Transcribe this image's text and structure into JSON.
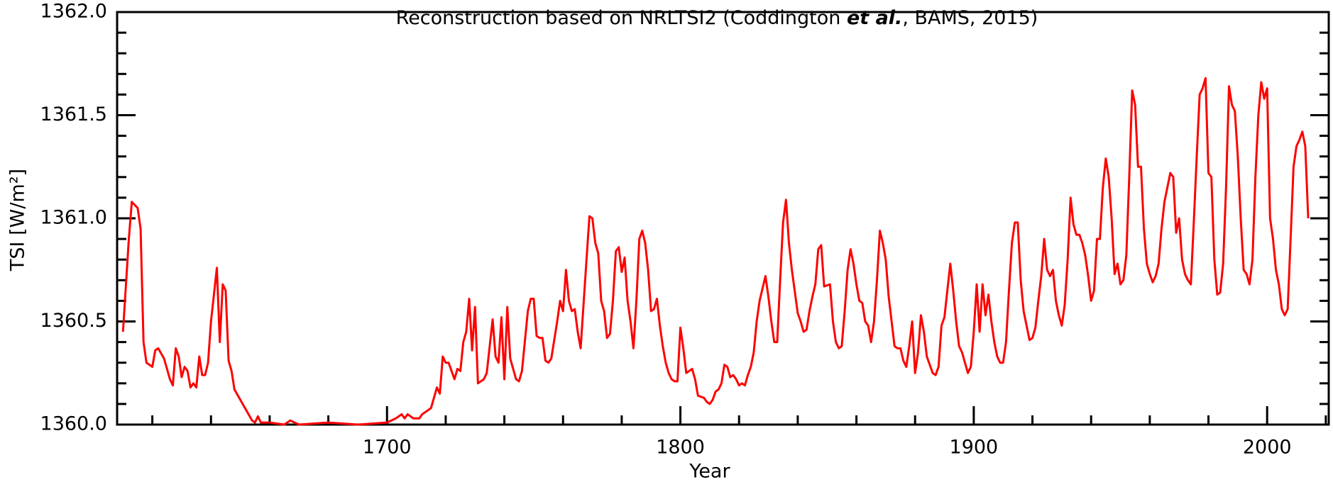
{
  "chart_data": {
    "type": "line",
    "title_parts": [
      "Reconstruction based on NRLTSI2 (Coddington ",
      "et al.",
      ", BAMS, 2015)"
    ],
    "xlabel": "Year",
    "ylabel": "TSI [W/m²]",
    "xlim": [
      1608,
      2021
    ],
    "xticks": [
      1700,
      1800,
      1900,
      2000
    ],
    "xminorticks": [
      1620,
      1640,
      1660,
      1680,
      1720,
      1740,
      1760,
      1780,
      1820,
      1840,
      1860,
      1880,
      1920,
      1940,
      1960,
      1980,
      2020
    ],
    "ylim": [
      1360.0,
      1362.0
    ],
    "yticks": [
      {
        "value": 1360.0,
        "label": "1360.0"
      },
      1360.5,
      {
        "value": 1361.0,
        "label": "1361.0"
      },
      1361.5,
      {
        "value": 1362.0,
        "label": "1362.0"
      }
    ],
    "yminorticks": [
      1360.1,
      1360.2,
      1360.3,
      1360.4,
      1360.6,
      1360.7,
      1360.8,
      1360.9,
      1361.1,
      1361.2,
      1361.3,
      1361.4,
      1361.6,
      1361.7,
      1361.8,
      1361.9
    ],
    "x": [
      1610,
      1612,
      1613,
      1615,
      1616,
      1617,
      1618,
      1620,
      1621,
      1622,
      1624,
      1626,
      1627,
      1628,
      1629,
      1630,
      1631,
      1632,
      1633,
      1634,
      1635,
      1636,
      1637,
      1638,
      1639,
      1640,
      1642,
      1643,
      1644,
      1645,
      1646,
      1647,
      1648,
      1650,
      1652,
      1654,
      1655,
      1656,
      1657,
      1660,
      1665,
      1667,
      1670,
      1680,
      1690,
      1700,
      1703,
      1705,
      1706,
      1707,
      1709,
      1711,
      1712,
      1715,
      1717,
      1718,
      1719,
      1720,
      1721,
      1723,
      1724,
      1725,
      1726,
      1727,
      1728,
      1729,
      1730,
      1731,
      1733,
      1734,
      1736,
      1737,
      1738,
      1739,
      1740,
      1741,
      1742,
      1744,
      1745,
      1746,
      1748,
      1749,
      1750,
      1751,
      1752,
      1753,
      1754,
      1755,
      1756,
      1758,
      1759,
      1760,
      1761,
      1762,
      1763,
      1764,
      1765,
      1766,
      1768,
      1769,
      1770,
      1771,
      1772,
      1773,
      1774,
      1775,
      1776,
      1777,
      1778,
      1779,
      1780,
      1781,
      1782,
      1783,
      1784,
      1785,
      1786,
      1787,
      1788,
      1789,
      1790,
      1791,
      1792,
      1793,
      1794,
      1795,
      1796,
      1797,
      1798,
      1799,
      1800,
      1801,
      1802,
      1803,
      1804,
      1805,
      1806,
      1808,
      1809,
      1810,
      1811,
      1812,
      1813,
      1814,
      1815,
      1816,
      1817,
      1818,
      1819,
      1820,
      1821,
      1822,
      1823,
      1824,
      1825,
      1826,
      1827,
      1829,
      1830,
      1831,
      1832,
      1833,
      1834,
      1835,
      1836,
      1837,
      1838,
      1840,
      1841,
      1842,
      1843,
      1844,
      1845,
      1846,
      1847,
      1848,
      1849,
      1851,
      1852,
      1853,
      1854,
      1855,
      1856,
      1857,
      1858,
      1859,
      1860,
      1861,
      1862,
      1863,
      1864,
      1865,
      1866,
      1867,
      1868,
      1869,
      1870,
      1871,
      1872,
      1873,
      1874,
      1875,
      1876,
      1877,
      1878,
      1879,
      1880,
      1881,
      1882,
      1883,
      1884,
      1885,
      1886,
      1887,
      1888,
      1889,
      1890,
      1891,
      1892,
      1893,
      1894,
      1895,
      1896,
      1897,
      1898,
      1899,
      1900,
      1901,
      1902,
      1903,
      1904,
      1905,
      1906,
      1907,
      1908,
      1909,
      1910,
      1911,
      1912,
      1913,
      1914,
      1915,
      1916,
      1917,
      1918,
      1919,
      1920,
      1921,
      1922,
      1923,
      1924,
      1925,
      1926,
      1927,
      1928,
      1929,
      1930,
      1931,
      1932,
      1933,
      1934,
      1935,
      1936,
      1937,
      1938,
      1939,
      1940,
      1941,
      1942,
      1943,
      1944,
      1945,
      1946,
      1947,
      1948,
      1949,
      1950,
      1951,
      1952,
      1953,
      1954,
      1955,
      1956,
      1957,
      1958,
      1959,
      1960,
      1961,
      1962,
      1963,
      1964,
      1965,
      1966,
      1967,
      1968,
      1969,
      1970,
      1971,
      1972,
      1973,
      1974,
      1975,
      1976,
      1977,
      1978,
      1979,
      1980,
      1981,
      1982,
      1983,
      1984,
      1985,
      1986,
      1987,
      1988,
      1989,
      1990,
      1991,
      1992,
      1993,
      1994,
      1995,
      1996,
      1997,
      1998,
      1999,
      2000,
      2001,
      2002,
      2003,
      2004,
      2005,
      2006,
      2007,
      2008,
      2009,
      2010,
      2011,
      2012,
      2013,
      2014
    ],
    "series": [
      {
        "color": "#ff0000",
        "values": [
          1360.45,
          1360.9,
          1361.08,
          1361.05,
          1360.95,
          1360.4,
          1360.3,
          1360.28,
          1360.36,
          1360.37,
          1360.32,
          1360.22,
          1360.19,
          1360.37,
          1360.33,
          1360.23,
          1360.28,
          1360.26,
          1360.18,
          1360.2,
          1360.18,
          1360.33,
          1360.24,
          1360.24,
          1360.3,
          1360.5,
          1360.76,
          1360.4,
          1360.68,
          1360.65,
          1360.31,
          1360.26,
          1360.17,
          1360.12,
          1360.07,
          1360.02,
          1360.01,
          1360.04,
          1360.01,
          1360.01,
          1360.0,
          1360.02,
          1360.0,
          1360.01,
          1360.0,
          1360.01,
          1360.03,
          1360.05,
          1360.03,
          1360.05,
          1360.03,
          1360.03,
          1360.05,
          1360.08,
          1360.18,
          1360.15,
          1360.33,
          1360.3,
          1360.3,
          1360.22,
          1360.27,
          1360.26,
          1360.4,
          1360.45,
          1360.61,
          1360.36,
          1360.57,
          1360.2,
          1360.22,
          1360.25,
          1360.51,
          1360.33,
          1360.3,
          1360.52,
          1360.22,
          1360.57,
          1360.32,
          1360.22,
          1360.21,
          1360.26,
          1360.55,
          1360.61,
          1360.61,
          1360.43,
          1360.42,
          1360.42,
          1360.31,
          1360.3,
          1360.32,
          1360.5,
          1360.6,
          1360.55,
          1360.75,
          1360.6,
          1360.55,
          1360.56,
          1360.45,
          1360.37,
          1360.8,
          1361.01,
          1361.0,
          1360.88,
          1360.83,
          1360.6,
          1360.55,
          1360.42,
          1360.44,
          1360.6,
          1360.84,
          1360.86,
          1360.74,
          1360.81,
          1360.6,
          1360.5,
          1360.37,
          1360.6,
          1360.9,
          1360.94,
          1360.88,
          1360.75,
          1360.55,
          1360.56,
          1360.61,
          1360.48,
          1360.38,
          1360.3,
          1360.25,
          1360.22,
          1360.21,
          1360.21,
          1360.47,
          1360.37,
          1360.25,
          1360.26,
          1360.27,
          1360.22,
          1360.14,
          1360.13,
          1360.11,
          1360.1,
          1360.12,
          1360.16,
          1360.17,
          1360.2,
          1360.29,
          1360.28,
          1360.23,
          1360.24,
          1360.22,
          1360.19,
          1360.2,
          1360.19,
          1360.24,
          1360.28,
          1360.35,
          1360.5,
          1360.6,
          1360.72,
          1360.62,
          1360.5,
          1360.4,
          1360.4,
          1360.7,
          1360.98,
          1361.09,
          1360.88,
          1360.75,
          1360.54,
          1360.5,
          1360.45,
          1360.46,
          1360.55,
          1360.62,
          1360.68,
          1360.85,
          1360.87,
          1360.67,
          1360.68,
          1360.5,
          1360.4,
          1360.37,
          1360.38,
          1360.55,
          1360.75,
          1360.85,
          1360.78,
          1360.68,
          1360.6,
          1360.59,
          1360.5,
          1360.48,
          1360.4,
          1360.5,
          1360.7,
          1360.94,
          1360.88,
          1360.8,
          1360.62,
          1360.5,
          1360.38,
          1360.37,
          1360.37,
          1360.31,
          1360.28,
          1360.38,
          1360.5,
          1360.25,
          1360.35,
          1360.53,
          1360.45,
          1360.33,
          1360.29,
          1360.25,
          1360.24,
          1360.28,
          1360.48,
          1360.52,
          1360.65,
          1360.78,
          1360.65,
          1360.5,
          1360.38,
          1360.35,
          1360.3,
          1360.25,
          1360.28,
          1360.45,
          1360.68,
          1360.45,
          1360.68,
          1360.53,
          1360.63,
          1360.5,
          1360.4,
          1360.33,
          1360.3,
          1360.3,
          1360.4,
          1360.65,
          1360.88,
          1360.98,
          1360.98,
          1360.7,
          1360.55,
          1360.48,
          1360.41,
          1360.42,
          1360.47,
          1360.6,
          1360.72,
          1360.9,
          1360.75,
          1360.72,
          1360.75,
          1360.6,
          1360.53,
          1360.48,
          1360.58,
          1360.8,
          1361.1,
          1360.97,
          1360.92,
          1360.92,
          1360.88,
          1360.82,
          1360.72,
          1360.6,
          1360.65,
          1360.9,
          1360.9,
          1361.15,
          1361.29,
          1361.2,
          1361.0,
          1360.73,
          1360.78,
          1360.68,
          1360.7,
          1360.82,
          1361.2,
          1361.62,
          1361.55,
          1361.25,
          1361.25,
          1360.95,
          1360.78,
          1360.73,
          1360.69,
          1360.72,
          1360.78,
          1360.95,
          1361.08,
          1361.15,
          1361.22,
          1361.2,
          1360.93,
          1361.0,
          1360.8,
          1360.73,
          1360.7,
          1360.68,
          1360.98,
          1361.3,
          1361.6,
          1361.63,
          1361.68,
          1361.22,
          1361.2,
          1360.8,
          1360.63,
          1360.64,
          1360.78,
          1361.15,
          1361.64,
          1361.55,
          1361.52,
          1361.3,
          1361.0,
          1360.75,
          1360.73,
          1360.68,
          1360.8,
          1361.2,
          1361.5,
          1361.66,
          1361.58,
          1361.63,
          1361.0,
          1360.9,
          1360.75,
          1360.68,
          1360.56,
          1360.53,
          1360.56,
          1360.9,
          1361.25,
          1361.35,
          1361.38,
          1361.42,
          1361.35,
          1361.0
        ]
      }
    ]
  }
}
